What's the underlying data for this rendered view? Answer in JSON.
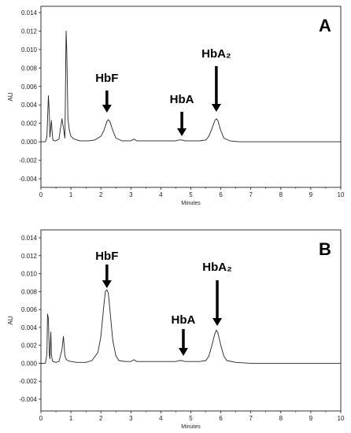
{
  "chart_data": [
    {
      "type": "line",
      "panel_label": "A",
      "xlabel": "Minutes",
      "ylabel": "AU",
      "xlim": [
        0,
        10
      ],
      "ylim": [
        -0.0045,
        0.0145
      ],
      "x_ticks": [
        "0",
        "1",
        "2",
        "3",
        "4",
        "5",
        "6",
        "7",
        "8",
        "9",
        "10"
      ],
      "y_ticks": [
        "0.014",
        "0.012",
        "0.010",
        "0.008",
        "0.006",
        "0.004",
        "0.002",
        "0.000",
        "-0.002",
        "-0.004"
      ],
      "y_tick_values": [
        0.014,
        0.012,
        0.01,
        0.008,
        0.006,
        0.004,
        0.002,
        0.0,
        -0.002,
        -0.004
      ],
      "grid": false,
      "series": [
        {
          "x": [
            0,
            0.15,
            0.2,
            0.25,
            0.28,
            0.3,
            0.35,
            0.38,
            0.4,
            0.45,
            0.5,
            0.6,
            0.7,
            0.75,
            0.8,
            0.84,
            0.86,
            0.9,
            0.95,
            1.0,
            1.1,
            1.3,
            1.6,
            1.8,
            2.0,
            2.1,
            2.2,
            2.25,
            2.3,
            2.4,
            2.5,
            2.7,
            3.0,
            3.1,
            3.2,
            3.5,
            4.0,
            4.5,
            4.6,
            4.7,
            4.8,
            5.0,
            5.3,
            5.5,
            5.6,
            5.7,
            5.8,
            5.85,
            5.9,
            6.0,
            6.1,
            6.3,
            6.6,
            7,
            8,
            9,
            10
          ],
          "y": [
            0,
            0,
            0.0005,
            0.005,
            0.003,
            0.0005,
            0.0023,
            0.0008,
            0.0002,
            0.0001,
            0.0001,
            0.0003,
            0.0025,
            0.0015,
            0.0004,
            0.012,
            0.01,
            0.0025,
            0.0012,
            0.0006,
            0.0003,
            0.0001,
            0.0001,
            0.0002,
            0.0006,
            0.0012,
            0.0022,
            0.0024,
            0.0022,
            0.0012,
            0.0004,
            0.0001,
            0.0001,
            0.0003,
            0.0001,
            0.0001,
            0.0001,
            0.0001,
            0.0002,
            0.0002,
            0.0001,
            0.0001,
            0.0001,
            0.0002,
            0.0006,
            0.0014,
            0.0023,
            0.0025,
            0.0023,
            0.0012,
            0.0004,
            0.0001,
            0,
            0,
            0,
            0,
            0
          ]
        }
      ],
      "annotations": [
        {
          "text": "HbF",
          "x": 2.2
        },
        {
          "text": "HbA",
          "x": 4.7
        },
        {
          "text": "HbA₂",
          "x": 5.85
        }
      ]
    },
    {
      "type": "line",
      "panel_label": "B",
      "xlabel": "Minutes",
      "ylabel": "AU",
      "xlim": [
        0,
        10
      ],
      "ylim": [
        -0.0045,
        0.0145
      ],
      "x_ticks": [
        "0",
        "1",
        "2",
        "3",
        "4",
        "5",
        "6",
        "7",
        "8",
        "9",
        "10"
      ],
      "y_ticks": [
        "0.014",
        "0.012",
        "0.010",
        "0.008",
        "0.006",
        "0.004",
        "0.002",
        "0.000",
        "-0.002",
        "-0.004"
      ],
      "y_tick_values": [
        0.014,
        0.012,
        0.01,
        0.008,
        0.006,
        0.004,
        0.002,
        0.0,
        -0.002,
        -0.004
      ],
      "grid": false,
      "series": [
        {
          "x": [
            0,
            0.15,
            0.2,
            0.22,
            0.25,
            0.28,
            0.3,
            0.33,
            0.35,
            0.38,
            0.4,
            0.5,
            0.6,
            0.7,
            0.75,
            0.8,
            0.85,
            0.9,
            1.0,
            1.2,
            1.5,
            1.7,
            1.9,
            2.0,
            2.1,
            2.15,
            2.2,
            2.25,
            2.3,
            2.4,
            2.5,
            2.6,
            2.8,
            3.0,
            3.1,
            3.2,
            3.5,
            4.0,
            4.5,
            4.6,
            4.7,
            4.8,
            5.0,
            5.3,
            5.5,
            5.6,
            5.7,
            5.8,
            5.85,
            5.9,
            6.0,
            6.1,
            6.2,
            6.5,
            7,
            8,
            9,
            10
          ],
          "y": [
            0,
            0,
            0.001,
            0.0055,
            0.005,
            0.001,
            0.0005,
            0.0035,
            0.001,
            0.0003,
            0.0002,
            0.0001,
            0.0002,
            0.0015,
            0.003,
            0.0008,
            0.0004,
            0.0003,
            0.0002,
            0.0001,
            0.0001,
            0.0003,
            0.0012,
            0.003,
            0.0065,
            0.008,
            0.0082,
            0.0078,
            0.006,
            0.0025,
            0.0008,
            0.0003,
            0.0002,
            0.0002,
            0.0004,
            0.0002,
            0.0002,
            0.0002,
            0.0002,
            0.0003,
            0.0003,
            0.0002,
            0.0002,
            0.0002,
            0.0003,
            0.0008,
            0.002,
            0.0033,
            0.0037,
            0.0034,
            0.002,
            0.0008,
            0.0003,
            0.0001,
            0,
            0,
            0,
            0
          ]
        }
      ],
      "annotations": [
        {
          "text": "HbF",
          "x": 2.2
        },
        {
          "text": "HbA",
          "x": 4.75
        },
        {
          "text": "HbA₂",
          "x": 5.88
        }
      ]
    }
  ]
}
